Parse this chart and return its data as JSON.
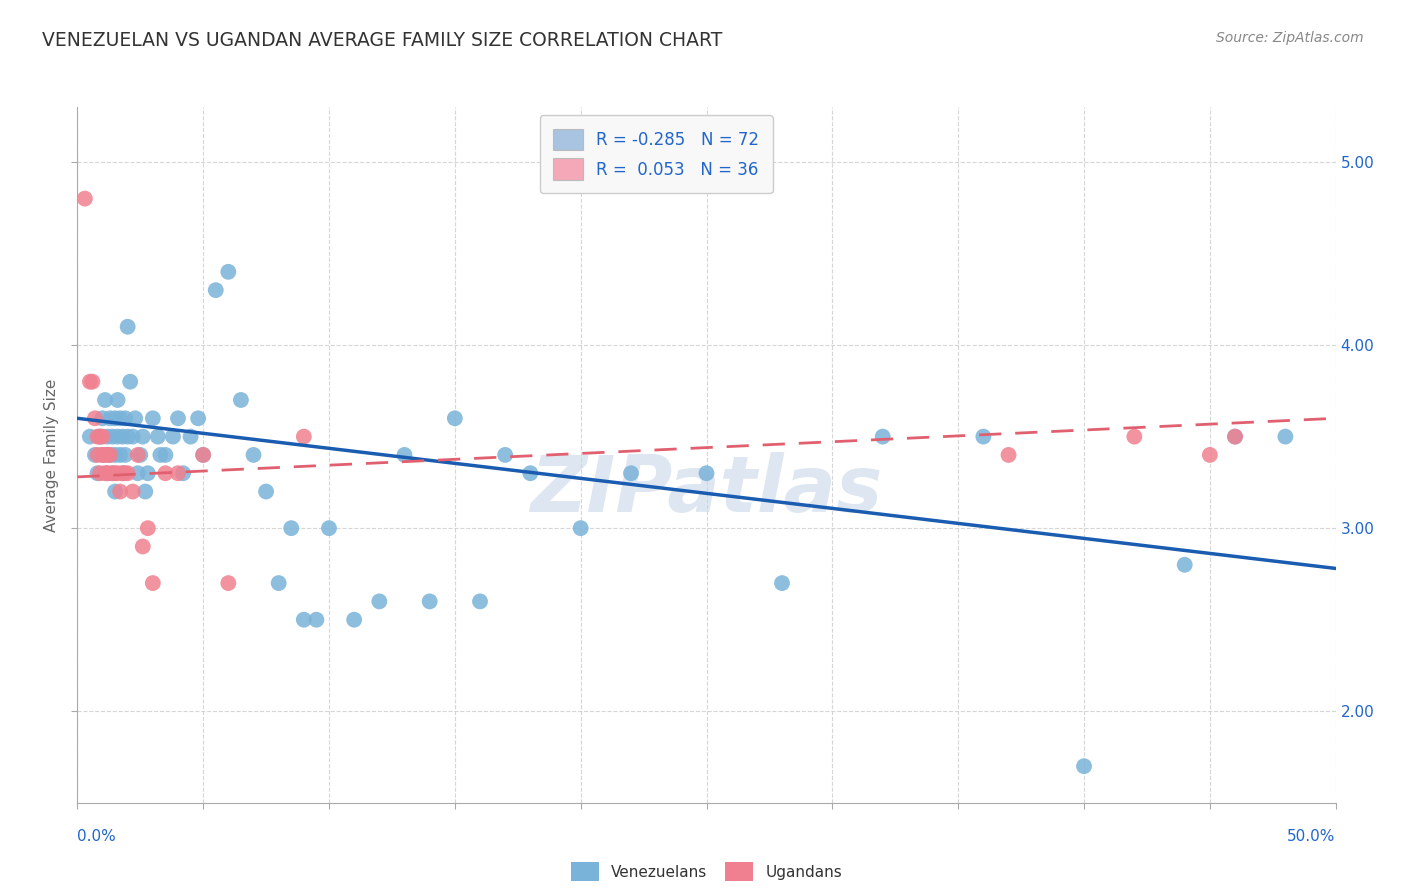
{
  "title": "VENEZUELAN VS UGANDAN AVERAGE FAMILY SIZE CORRELATION CHART",
  "source": "Source: ZipAtlas.com",
  "ylabel": "Average Family Size",
  "xlim": [
    0.0,
    0.5
  ],
  "ylim": [
    1.5,
    5.3
  ],
  "yticks": [
    2.0,
    3.0,
    4.0,
    5.0
  ],
  "legend_items": [
    {
      "color": "#a8c4e0",
      "label": "R = -0.285   N = 72"
    },
    {
      "color": "#f4a8b8",
      "label": "R =  0.053   N = 36"
    }
  ],
  "legend_text_color": "#2266cc",
  "venezuelan_color": "#7ab3d9",
  "ugandan_color": "#f08090",
  "venezuelan_line_color": "#1a5cb0",
  "ugandan_line_color": "#e06070",
  "background_color": "#ffffff",
  "grid_color": "#cccccc",
  "title_color": "#333333",
  "watermark": "ZIPatlas",
  "watermark_color": "#c8d8e8",
  "venezuelan_x": [
    0.005,
    0.007,
    0.008,
    0.009,
    0.01,
    0.01,
    0.011,
    0.012,
    0.012,
    0.013,
    0.013,
    0.014,
    0.014,
    0.015,
    0.015,
    0.015,
    0.016,
    0.016,
    0.017,
    0.017,
    0.018,
    0.018,
    0.019,
    0.019,
    0.02,
    0.02,
    0.021,
    0.022,
    0.023,
    0.024,
    0.025,
    0.026,
    0.027,
    0.028,
    0.03,
    0.032,
    0.033,
    0.035,
    0.038,
    0.04,
    0.042,
    0.045,
    0.048,
    0.05,
    0.055,
    0.06,
    0.065,
    0.07,
    0.075,
    0.08,
    0.085,
    0.09,
    0.095,
    0.1,
    0.11,
    0.12,
    0.13,
    0.14,
    0.15,
    0.16,
    0.17,
    0.18,
    0.2,
    0.22,
    0.25,
    0.28,
    0.32,
    0.36,
    0.4,
    0.44,
    0.46,
    0.48
  ],
  "venezuelan_y": [
    3.5,
    3.4,
    3.3,
    3.5,
    3.6,
    3.4,
    3.7,
    3.5,
    3.3,
    3.6,
    3.4,
    3.5,
    3.3,
    3.6,
    3.4,
    3.2,
    3.7,
    3.5,
    3.6,
    3.4,
    3.5,
    3.3,
    3.4,
    3.6,
    3.5,
    4.1,
    3.8,
    3.5,
    3.6,
    3.3,
    3.4,
    3.5,
    3.2,
    3.3,
    3.6,
    3.5,
    3.4,
    3.4,
    3.5,
    3.6,
    3.3,
    3.5,
    3.6,
    3.4,
    4.3,
    4.4,
    3.7,
    3.4,
    3.2,
    2.7,
    3.0,
    2.5,
    2.5,
    3.0,
    2.5,
    2.6,
    3.4,
    2.6,
    3.6,
    2.6,
    3.4,
    3.3,
    3.0,
    3.3,
    3.3,
    2.7,
    3.5,
    3.5,
    1.7,
    2.8,
    3.5,
    3.5
  ],
  "ugandan_x": [
    0.003,
    0.005,
    0.006,
    0.007,
    0.008,
    0.008,
    0.009,
    0.009,
    0.01,
    0.01,
    0.011,
    0.011,
    0.012,
    0.012,
    0.013,
    0.014,
    0.015,
    0.016,
    0.017,
    0.018,
    0.019,
    0.02,
    0.022,
    0.024,
    0.026,
    0.028,
    0.03,
    0.035,
    0.04,
    0.05,
    0.06,
    0.09,
    0.37,
    0.42,
    0.45,
    0.46
  ],
  "ugandan_y": [
    4.8,
    3.8,
    3.8,
    3.6,
    3.5,
    3.4,
    3.5,
    3.3,
    3.4,
    3.5,
    3.3,
    3.4,
    3.4,
    3.3,
    3.4,
    3.3,
    3.3,
    3.3,
    3.2,
    3.3,
    3.3,
    3.3,
    3.2,
    3.4,
    2.9,
    3.0,
    2.7,
    3.3,
    3.3,
    3.4,
    2.7,
    3.5,
    3.4,
    3.5,
    3.4,
    3.5
  ],
  "venezuelan_trend_x": [
    0.0,
    0.5
  ],
  "venezuelan_trend_y": [
    3.6,
    2.78
  ],
  "ugandan_trend_x": [
    0.0,
    0.5
  ],
  "ugandan_trend_y": [
    3.28,
    3.6
  ],
  "right_ytick_color": "#2266cc",
  "bottom_xlabel_color": "#2266cc"
}
